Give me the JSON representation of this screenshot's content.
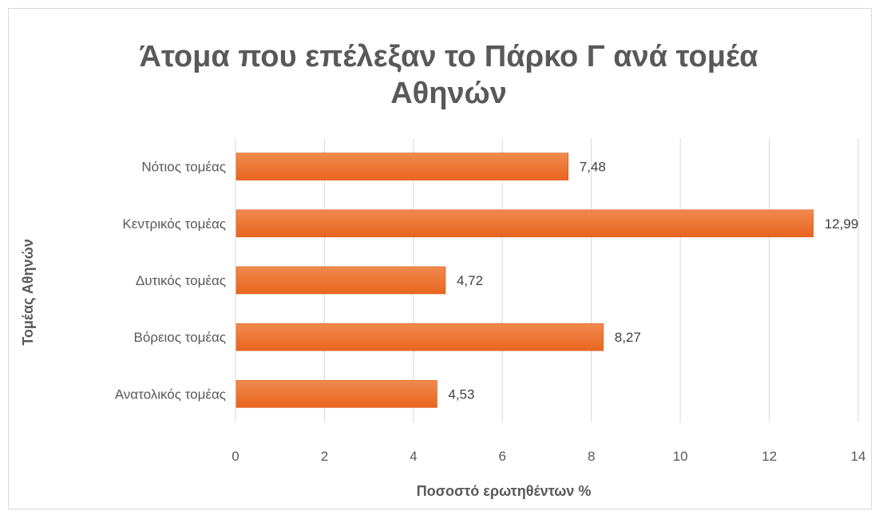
{
  "chart_data": {
    "type": "bar",
    "orientation": "horizontal",
    "title": "Άτομα που επέλεξαν το Πάρκο Γ ανά τομέα Αθηνών",
    "title_lines": [
      "Άτομα που επέλεξαν το Πάρκο Γ ανά τομέα",
      "Αθηνών"
    ],
    "xlabel": "Ποσοστό ερωτηθέντων %",
    "ylabel": "Τομέας Αθηνών",
    "xlim": [
      0,
      14
    ],
    "xticks": [
      0,
      2,
      4,
      6,
      8,
      10,
      12,
      14
    ],
    "grid": true,
    "legend": "none",
    "bar_color": "#ed7031",
    "categories": [
      "Νότιος τομέας",
      "Κεντρικός τομέας",
      "Δυτικός τομέας",
      "Βόρειος τομέας",
      "Ανατολικός τομέας"
    ],
    "values": [
      7.48,
      12.99,
      4.72,
      8.27,
      4.53
    ],
    "data_labels": [
      "7,48",
      "12,99",
      "4,72",
      "8,27",
      "4,53"
    ]
  }
}
